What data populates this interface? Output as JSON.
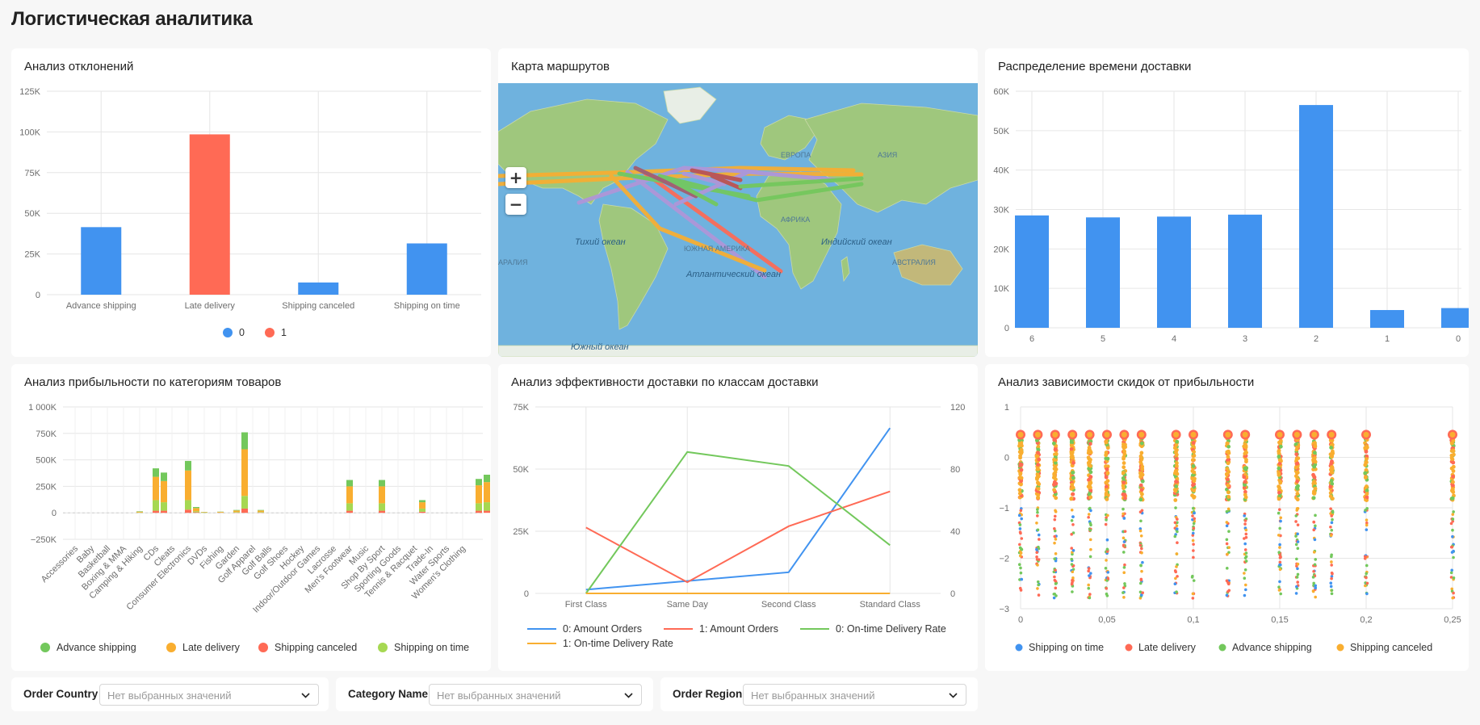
{
  "page_title": "Логистическая аналитика",
  "colors": {
    "blue": "#4193f0",
    "red": "#ff6a55",
    "green": "#73c85c",
    "orange": "#f9ae30",
    "lime": "#a6d852",
    "purple": "#b195d8"
  },
  "filters": [
    {
      "label": "Order Country",
      "placeholder": "Нет выбранных значений"
    },
    {
      "label": "Category Name",
      "placeholder": "Нет выбранных значений"
    },
    {
      "label": "Order Region",
      "placeholder": "Нет выбранных значений"
    }
  ],
  "map": {
    "title": "Карта маршрутов",
    "zoom_in": "+",
    "zoom_out": "−",
    "labels": [
      "ЕВРОПА",
      "АЗИЯ",
      "АФРИКА",
      "ЮЖНАЯ АМЕРИКА",
      "АВСТРАЛИЯ",
      "ИЯ",
      "АРАЛИЯ"
    ],
    "ocean_labels": [
      "Тихий океан",
      "Атлантический океан",
      "Индийский океан",
      "Южный океан"
    ]
  },
  "chart_data": [
    {
      "id": "deviation",
      "type": "bar",
      "title": "Анализ отклонений",
      "categories": [
        "Advance shipping",
        "Late delivery",
        "Shipping canceled",
        "Shipping on time"
      ],
      "series": [
        {
          "name": "0",
          "color": "#4193f0",
          "values": [
            41500,
            null,
            7500,
            31500
          ]
        },
        {
          "name": "1",
          "color": "#ff6a55",
          "values": [
            null,
            98500,
            null,
            null
          ]
        }
      ],
      "ylim": [
        0,
        125000
      ],
      "yticks": [
        "0",
        "25K",
        "50K",
        "75K",
        "100K",
        "125K"
      ],
      "legend": [
        "0",
        "1"
      ]
    },
    {
      "id": "delivery-time",
      "type": "bar",
      "title": "Распределение времени доставки",
      "categories": [
        "6",
        "5",
        "4",
        "3",
        "2",
        "1",
        "0"
      ],
      "values": [
        28500,
        28000,
        28200,
        28700,
        56500,
        4500,
        5000
      ],
      "ylim": [
        0,
        60000
      ],
      "yticks": [
        "0",
        "10K",
        "20K",
        "30K",
        "40K",
        "50K",
        "60K"
      ]
    },
    {
      "id": "profit-category",
      "type": "bar",
      "stacked": true,
      "title": "Анализ прибыльности по категориям товаров",
      "categories": [
        "Accessories",
        "Baby",
        "Basketball",
        "Boxing & MMA",
        "Camping & Hiking",
        "CDs",
        "Cleats",
        "Consumer Electronics",
        "DVDs",
        "Fishing",
        "Garden",
        "Golf Apparel",
        "Golf Balls",
        "Golf Shoes",
        "Hockey",
        "Indoor/Outdoor Games",
        "Lacrosse",
        "Men's Footwear",
        "Music",
        "Shop By Sport",
        "Sporting Goods",
        "Tennis & Racquet",
        "Trade-In",
        "Water Sports",
        "Women's Clothing"
      ],
      "tick_positions": [
        0,
        2,
        4,
        6,
        8,
        10,
        12,
        14,
        16,
        18,
        20,
        22,
        24,
        26,
        28,
        30,
        32,
        34,
        36,
        38,
        40,
        42,
        44,
        46,
        48
      ],
      "slots": 50,
      "series": [
        {
          "name": "Advance shipping",
          "color": "#73c85c"
        },
        {
          "name": "Late delivery",
          "color": "#f9ae30"
        },
        {
          "name": "Shipping canceled",
          "color": "#ff6a55"
        },
        {
          "name": "Shipping on time",
          "color": "#a6d852"
        }
      ],
      "stacks": [
        {
          "slot": 8,
          "values": [
            4000,
            8000,
            0,
            3000
          ]
        },
        {
          "slot": 10,
          "values": [
            80000,
            220000,
            20000,
            100000
          ]
        },
        {
          "slot": 11,
          "values": [
            80000,
            200000,
            20000,
            80000
          ]
        },
        {
          "slot": 14,
          "values": [
            90000,
            280000,
            30000,
            90000
          ]
        },
        {
          "slot": 15,
          "values": [
            10000,
            30000,
            5000,
            10000
          ]
        },
        {
          "slot": 16,
          "values": [
            2000,
            5000,
            0,
            2000
          ]
        },
        {
          "slot": 18,
          "values": [
            2000,
            6000,
            1000,
            2000
          ]
        },
        {
          "slot": 20,
          "values": [
            5000,
            15000,
            2000,
            5000
          ]
        },
        {
          "slot": 21,
          "values": [
            160000,
            440000,
            40000,
            120000
          ]
        },
        {
          "slot": 23,
          "values": [
            5000,
            15000,
            2000,
            5000
          ]
        },
        {
          "slot": 34,
          "values": [
            60000,
            160000,
            20000,
            70000
          ]
        },
        {
          "slot": 38,
          "values": [
            60000,
            160000,
            20000,
            70000
          ]
        },
        {
          "slot": 43,
          "values": [
            20000,
            60000,
            10000,
            30000
          ]
        },
        {
          "slot": 50,
          "values": [
            60000,
            170000,
            20000,
            70000
          ]
        },
        {
          "slot": 51,
          "values": [
            70000,
            190000,
            20000,
            80000
          ]
        }
      ],
      "ylim": [
        -250000,
        1000000
      ],
      "yticks": [
        "−250K",
        "0",
        "250K",
        "500K",
        "750K",
        "1 000K"
      ],
      "legend": [
        "Advance shipping",
        "Late delivery",
        "Shipping canceled",
        "Shipping on time"
      ]
    },
    {
      "id": "delivery-class",
      "type": "line",
      "title": "Анализ эффективности доставки по классам доставки",
      "categories": [
        "First Class",
        "Same Day",
        "Second Class",
        "Standard Class"
      ],
      "series": [
        {
          "name": "0: Amount Orders",
          "axis": "left",
          "color": "#4193f0",
          "values": [
            1500,
            5000,
            8500,
            66500
          ]
        },
        {
          "name": "1: Amount Orders",
          "axis": "left",
          "color": "#ff6a55",
          "values": [
            26500,
            4500,
            27000,
            41000
          ]
        },
        {
          "name": "0: On-time Delivery Rate",
          "axis": "right",
          "color": "#73c85c",
          "values": [
            0,
            91,
            82,
            31
          ]
        },
        {
          "name": "1: On-time Delivery Rate",
          "axis": "right",
          "color": "#f9ae30",
          "values": [
            0,
            0,
            0,
            0
          ]
        }
      ],
      "ylim_left": [
        0,
        75000
      ],
      "yticks_left": [
        "0",
        "25K",
        "50K",
        "75K"
      ],
      "ylim_right": [
        0,
        120
      ],
      "yticks_right": [
        "0",
        "40",
        "80",
        "120"
      ],
      "legend": [
        "0: Amount Orders",
        "1: Amount Orders",
        "0: On-time Delivery Rate",
        "1: On-time Delivery Rate"
      ]
    },
    {
      "id": "discount-profit",
      "type": "scatter",
      "title": "Анализ зависимости скидок от прибыльности",
      "xlim": [
        0,
        0.25
      ],
      "xticks": [
        "0",
        "0,05",
        "0,1",
        "0,15",
        "0,2",
        "0,25"
      ],
      "ylim": [
        -3,
        1
      ],
      "yticks": [
        "−3",
        "−2",
        "−1",
        "0",
        "1"
      ],
      "discount_levels": [
        0,
        0.01,
        0.02,
        0.03,
        0.04,
        0.05,
        0.06,
        0.07,
        0.09,
        0.1,
        0.12,
        0.13,
        0.15,
        0.16,
        0.17,
        0.18,
        0.2,
        0.25
      ],
      "series": [
        {
          "name": "Shipping on time",
          "color": "#4193f0"
        },
        {
          "name": "Late delivery",
          "color": "#ff6a55"
        },
        {
          "name": "Advance shipping",
          "color": "#73c85c"
        },
        {
          "name": "Shipping canceled",
          "color": "#f9ae30"
        }
      ],
      "legend": [
        "Shipping on time",
        "Late delivery",
        "Advance shipping",
        "Shipping canceled"
      ]
    }
  ]
}
